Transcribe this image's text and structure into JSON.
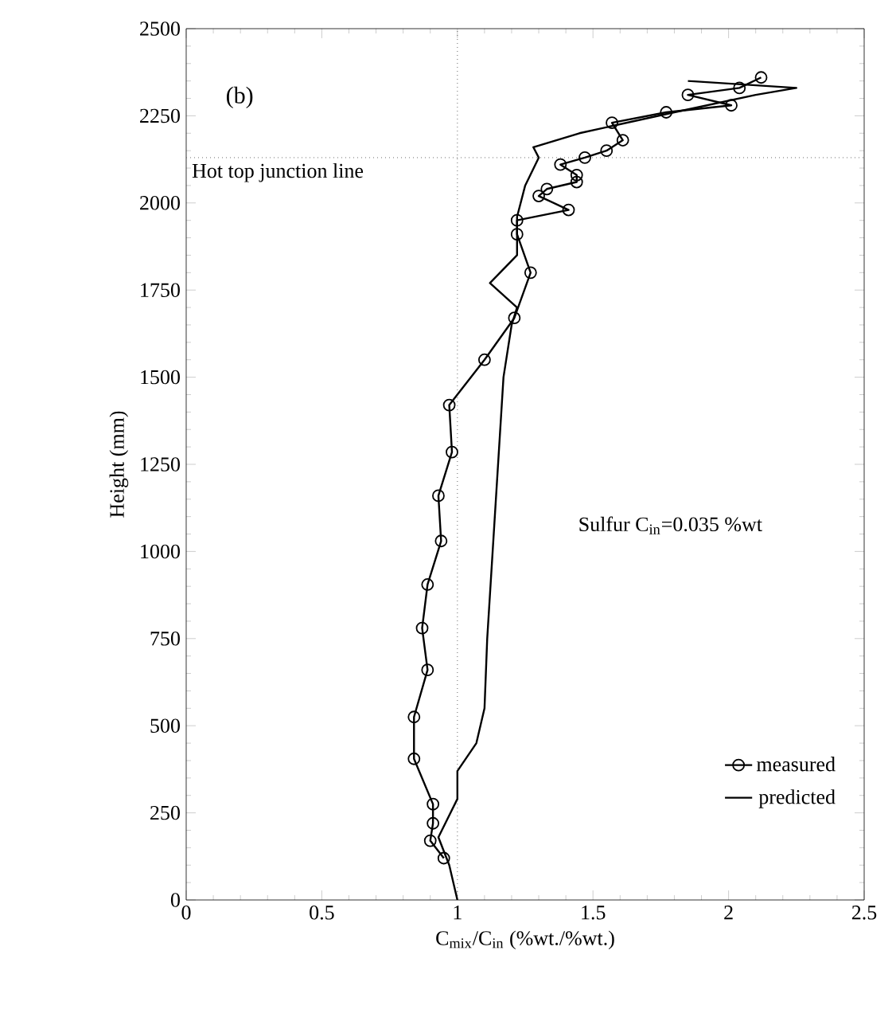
{
  "chart_data": {
    "type": "line",
    "xlabel": "C$_{mix}$/C$_{in}$ (%wt./%wt.)",
    "ylabel": "Height (mm)",
    "xlim": [
      0,
      2.5
    ],
    "xticks": [
      0,
      0.5,
      1,
      1.5,
      2,
      2.5
    ],
    "ylim": [
      0,
      2500
    ],
    "yticks": [
      0,
      250,
      500,
      750,
      1000,
      1250,
      1500,
      1750,
      2000,
      2250,
      2500
    ],
    "legend": "bottom right",
    "grid": false,
    "series": [
      {
        "name": "measured",
        "color": "#000000",
        "marker": "circle",
        "x": [
          0.95,
          0.9,
          0.91,
          0.91,
          0.84,
          0.84,
          0.89,
          0.87,
          0.89,
          0.94,
          0.93,
          0.98,
          0.97,
          1.1,
          1.21,
          1.27,
          1.22,
          1.22,
          1.41,
          1.3,
          1.33,
          1.44,
          1.44,
          1.38,
          1.47,
          1.55,
          1.61,
          1.57,
          1.77,
          2.01,
          1.85,
          2.04,
          2.12
        ],
        "values": [
          120,
          170,
          220,
          275,
          405,
          525,
          660,
          780,
          905,
          1030,
          1160,
          1285,
          1420,
          1550,
          1670,
          1800,
          1910,
          1950,
          1980,
          2020,
          2040,
          2060,
          2080,
          2110,
          2130,
          2150,
          2180,
          2230,
          2260,
          2280,
          2310,
          2330,
          2360
        ]
      },
      {
        "name": "predicted",
        "color": "#000000",
        "marker": "none",
        "x": [
          1.0,
          0.97,
          0.93,
          1.0,
          1.0,
          1.07,
          1.1,
          1.11,
          1.13,
          1.15,
          1.17,
          1.2,
          1.22,
          1.12,
          1.22,
          1.22,
          1.25,
          1.3,
          1.28,
          1.45,
          1.8,
          2.1,
          2.25,
          1.85
        ],
        "values": [
          0,
          100,
          180,
          290,
          370,
          450,
          550,
          750,
          1000,
          1250,
          1500,
          1650,
          1700,
          1770,
          1850,
          1960,
          2050,
          2130,
          2160,
          2200,
          2260,
          2310,
          2330,
          2350
        ]
      }
    ],
    "ref_lines": [
      {
        "axis": "x",
        "value": 1,
        "line_style": "dotted"
      },
      {
        "axis": "y",
        "value": 2130,
        "label": "Hot top junction line",
        "line_style": "dotted"
      }
    ],
    "annotations": [
      "(b)",
      "Sulfur C$_{in}$=0.035 %wt"
    ]
  }
}
